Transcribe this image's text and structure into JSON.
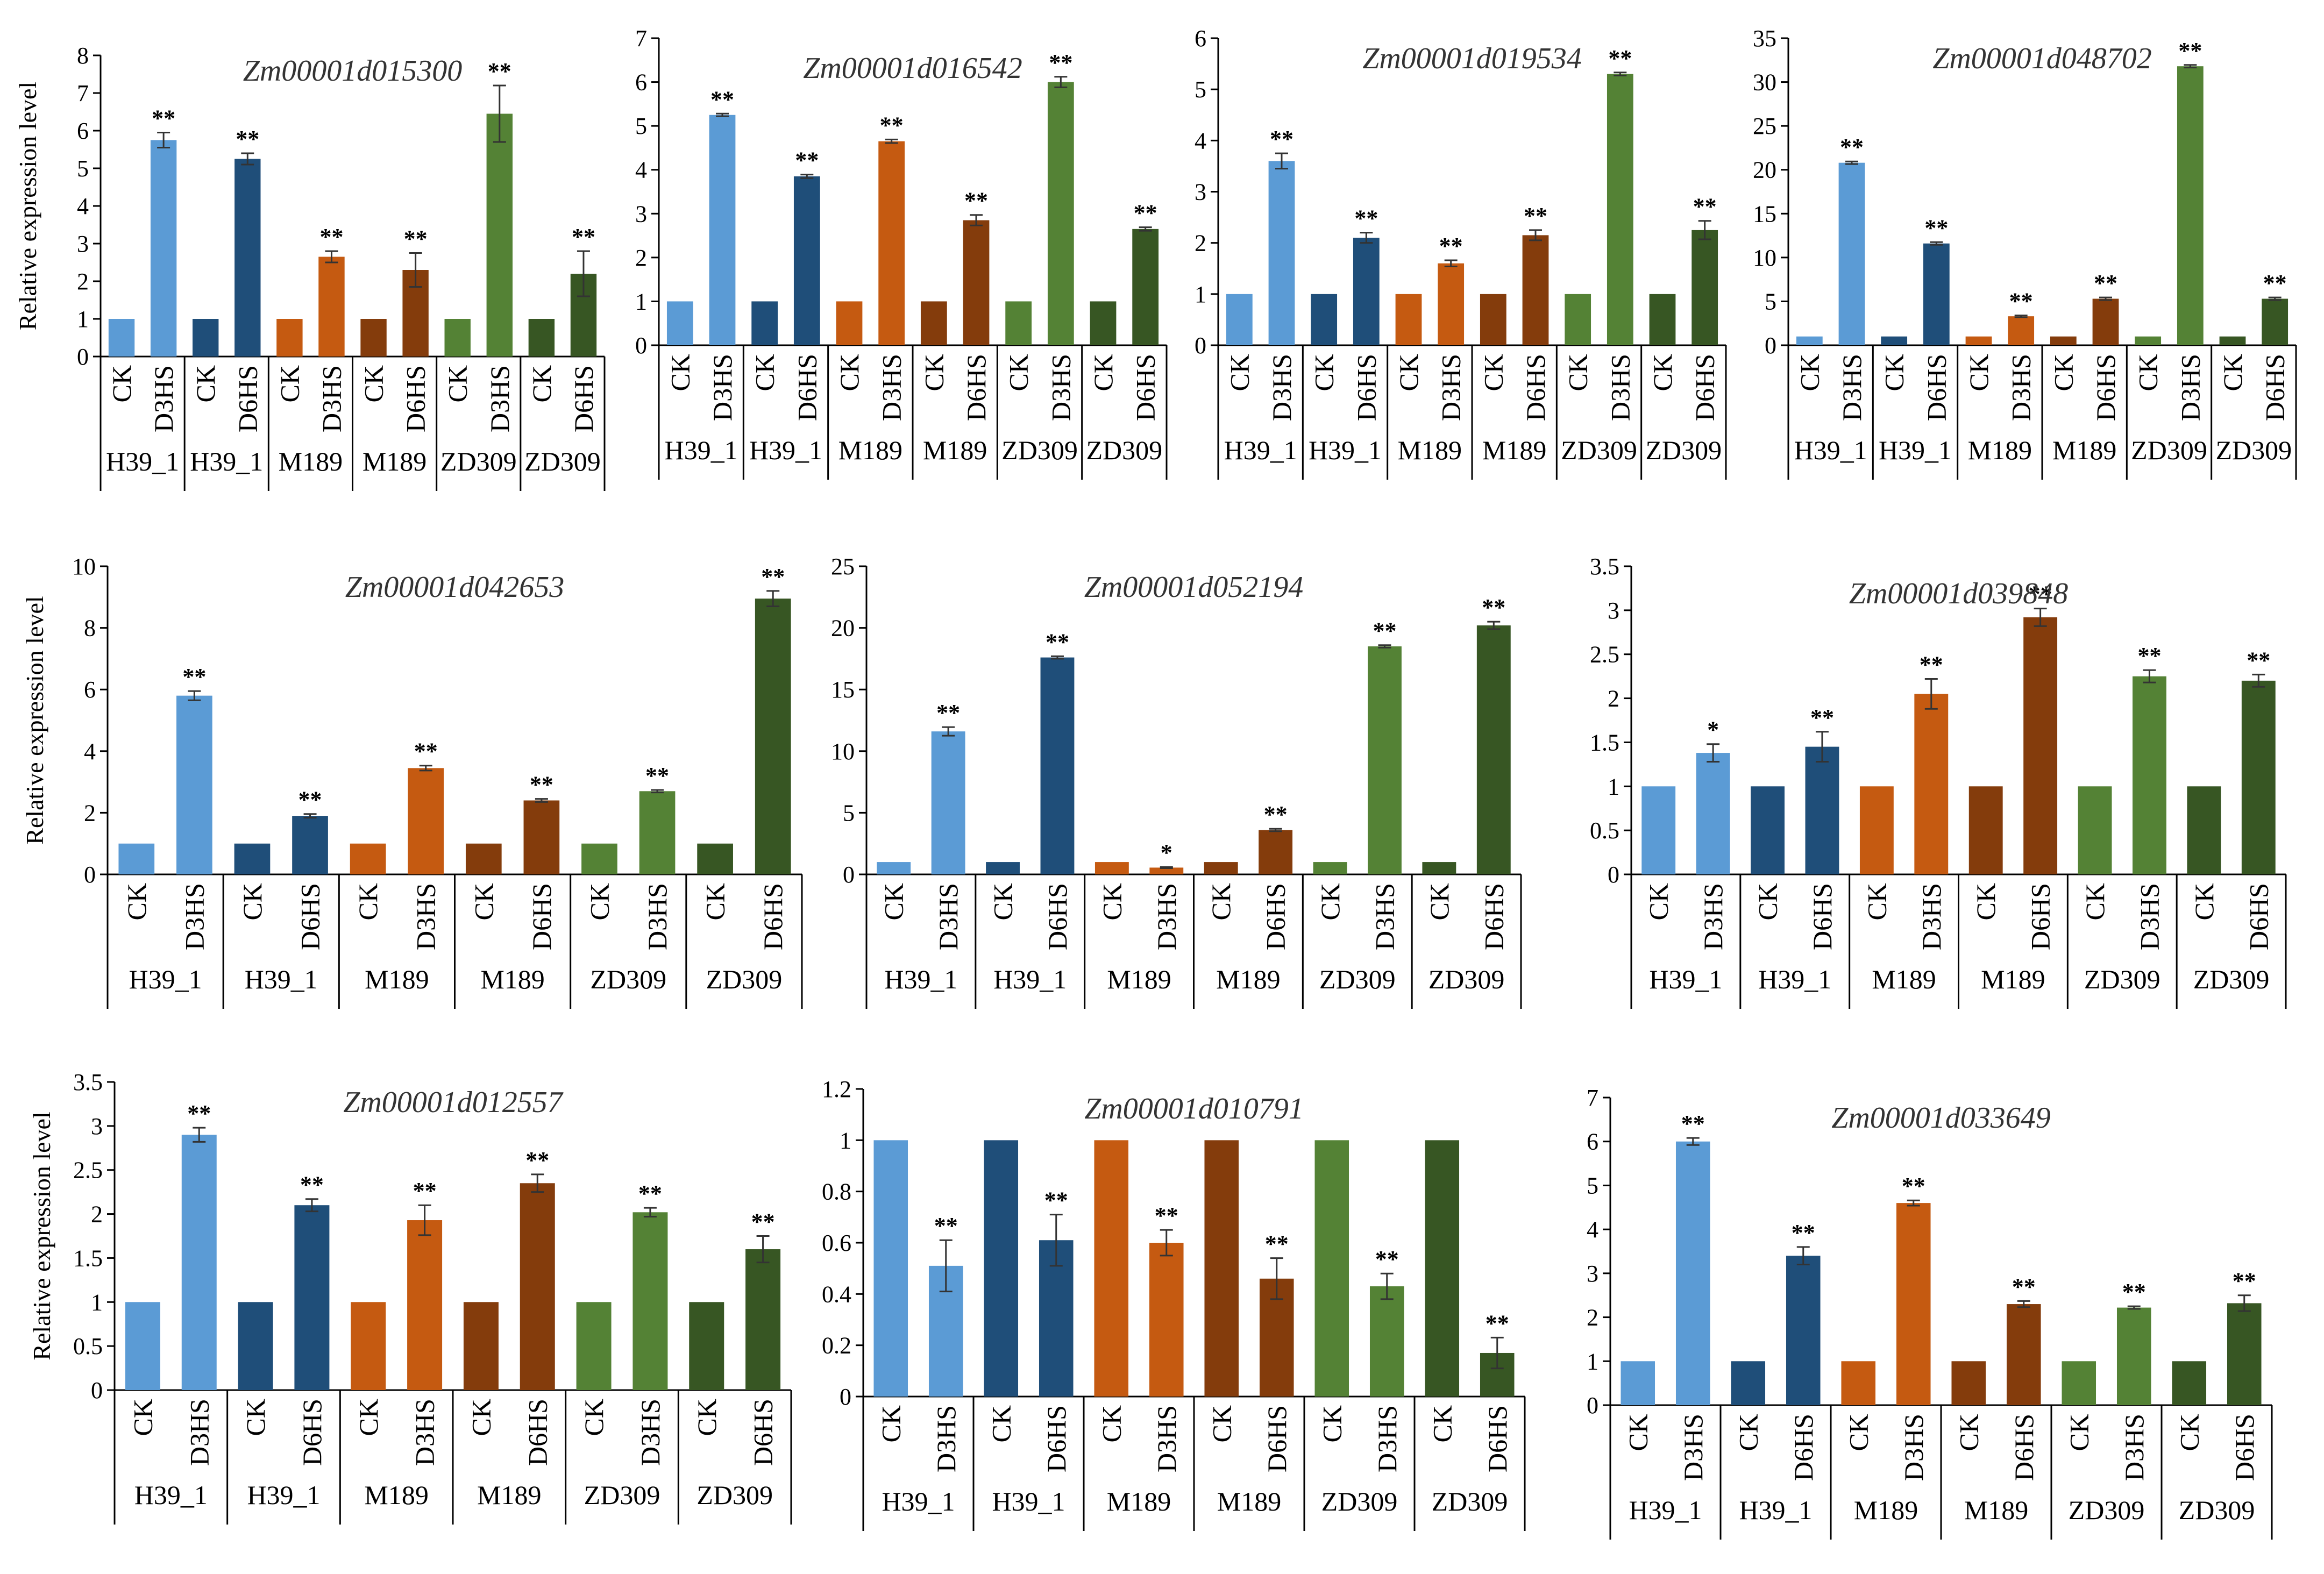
{
  "colors": {
    "H39_1_CK": "#5b9bd5",
    "H39_1_HS": "#1f4e79",
    "M189_CK": "#c55a11",
    "M189_HS": "#843c0c",
    "ZD309_CK": "#548235",
    "ZD309_HS": "#375623"
  },
  "ylabel_text": "Relative expression level",
  "chart_data": [
    {
      "type": "bar",
      "title": "Zm00001d015300",
      "ylabel": "Relative expression level",
      "ylim": [
        0,
        8
      ],
      "ystep": 1,
      "categories": [
        "CK",
        "D3HS",
        "CK",
        "D6HS",
        "CK",
        "D3HS",
        "CK",
        "D6HS",
        "CK",
        "D3HS",
        "CK",
        "D6HS"
      ],
      "groups": [
        "H39_1",
        "H39_1",
        "M189",
        "M189",
        "ZD309",
        "ZD309"
      ],
      "values": [
        1,
        5.75,
        1,
        5.25,
        1,
        2.65,
        1,
        2.3,
        1,
        6.45,
        1,
        2.2
      ],
      "errors": [
        0,
        0.2,
        0,
        0.15,
        0,
        0.15,
        0,
        0.45,
        0,
        0.75,
        0,
        0.6
      ],
      "significance": [
        "",
        "**",
        "",
        "**",
        "",
        "**",
        "",
        "**",
        "",
        "**",
        "",
        "**"
      ]
    },
    {
      "type": "bar",
      "title": "Zm00001d016542",
      "ylabel": "",
      "ylim": [
        0,
        7
      ],
      "ystep": 1,
      "categories": [
        "CK",
        "D3HS",
        "CK",
        "D6HS",
        "CK",
        "D3HS",
        "CK",
        "D6HS",
        "CK",
        "D3HS",
        "CK",
        "D6HS"
      ],
      "groups": [
        "H39_1",
        "H39_1",
        "M189",
        "M189",
        "ZD309",
        "ZD309"
      ],
      "values": [
        1,
        5.25,
        1,
        3.85,
        1,
        4.65,
        1,
        2.85,
        1,
        6.0,
        1,
        2.65
      ],
      "errors": [
        0,
        0.03,
        0,
        0.04,
        0,
        0.04,
        0,
        0.12,
        0,
        0.12,
        0,
        0.04
      ],
      "significance": [
        "",
        "**",
        "",
        "**",
        "",
        "**",
        "",
        "**",
        "",
        "**",
        "",
        "**"
      ]
    },
    {
      "type": "bar",
      "title": "Zm00001d019534",
      "ylabel": "",
      "ylim": [
        0,
        6
      ],
      "ystep": 1,
      "categories": [
        "CK",
        "D3HS",
        "CK",
        "D6HS",
        "CK",
        "D3HS",
        "CK",
        "D6HS",
        "CK",
        "D3HS",
        "CK",
        "D6HS"
      ],
      "groups": [
        "H39_1",
        "H39_1",
        "M189",
        "M189",
        "ZD309",
        "ZD309"
      ],
      "values": [
        1,
        3.6,
        1,
        2.1,
        1,
        1.6,
        1,
        2.15,
        1,
        5.3,
        1,
        2.25
      ],
      "errors": [
        0,
        0.15,
        0,
        0.1,
        0,
        0.06,
        0,
        0.1,
        0,
        0.03,
        0,
        0.18
      ],
      "significance": [
        "",
        "**",
        "",
        "**",
        "",
        "**",
        "",
        "**",
        "",
        "**",
        "",
        "**"
      ]
    },
    {
      "type": "bar",
      "title": "Zm00001d048702",
      "ylabel": "",
      "ylim": [
        0,
        35
      ],
      "ystep": 5,
      "categories": [
        "CK",
        "D3HS",
        "CK",
        "D6HS",
        "CK",
        "D3HS",
        "CK",
        "D6HS",
        "CK",
        "D3HS",
        "CK",
        "D6HS"
      ],
      "groups": [
        "H39_1",
        "H39_1",
        "M189",
        "M189",
        "ZD309",
        "ZD309"
      ],
      "values": [
        1,
        20.8,
        1,
        11.6,
        1,
        3.3,
        1,
        5.3,
        1,
        31.8,
        1,
        5.3
      ],
      "errors": [
        0,
        0.15,
        0,
        0.15,
        0,
        0.1,
        0,
        0.15,
        0,
        0.15,
        0,
        0.15
      ],
      "significance": [
        "",
        "**",
        "",
        "**",
        "",
        "**",
        "",
        "**",
        "",
        "**",
        "",
        "**"
      ]
    },
    {
      "type": "bar",
      "title": "Zm00001d042653",
      "ylabel": "Relative expression level",
      "ylim": [
        0,
        10
      ],
      "ystep": 2,
      "categories": [
        "CK",
        "D3HS",
        "CK",
        "D6HS",
        "CK",
        "D3HS",
        "CK",
        "D6HS",
        "CK",
        "D3HS",
        "CK",
        "D6HS"
      ],
      "groups": [
        "H39_1",
        "H39_1",
        "M189",
        "M189",
        "ZD309",
        "ZD309"
      ],
      "values": [
        1,
        5.8,
        1,
        1.9,
        1,
        3.45,
        1,
        2.4,
        1,
        2.7,
        1,
        8.95
      ],
      "errors": [
        0,
        0.15,
        0,
        0.06,
        0,
        0.08,
        0,
        0.05,
        0,
        0.04,
        0,
        0.25
      ],
      "significance": [
        "",
        "**",
        "",
        "**",
        "",
        "**",
        "",
        "**",
        "",
        "**",
        "",
        "**"
      ]
    },
    {
      "type": "bar",
      "title": "Zm00001d052194",
      "ylabel": "",
      "ylim": [
        0,
        25
      ],
      "ystep": 5,
      "categories": [
        "CK",
        "D3HS",
        "CK",
        "D6HS",
        "CK",
        "D3HS",
        "CK",
        "D6HS",
        "CK",
        "D3HS",
        "CK",
        "D6HS"
      ],
      "groups": [
        "H39_1",
        "H39_1",
        "M189",
        "M189",
        "ZD309",
        "ZD309"
      ],
      "values": [
        1,
        11.6,
        1,
        17.6,
        1,
        0.55,
        1,
        3.6,
        1,
        18.5,
        1,
        20.2
      ],
      "errors": [
        0,
        0.35,
        0,
        0.1,
        0,
        0.05,
        0,
        0.1,
        0,
        0.1,
        0,
        0.3
      ],
      "significance": [
        "",
        "**",
        "",
        "**",
        "",
        "*",
        "",
        "**",
        "",
        "**",
        "",
        "**"
      ]
    },
    {
      "type": "bar",
      "title": "Zm00001d039848",
      "ylabel": "",
      "ylim": [
        0,
        3.5
      ],
      "ystep": 0.5,
      "categories": [
        "CK",
        "D3HS",
        "CK",
        "D6HS",
        "CK",
        "D3HS",
        "CK",
        "D6HS",
        "CK",
        "D3HS",
        "CK",
        "D6HS"
      ],
      "groups": [
        "H39_1",
        "H39_1",
        "M189",
        "M189",
        "ZD309",
        "ZD309"
      ],
      "values": [
        1,
        1.38,
        1,
        1.45,
        1,
        2.05,
        1,
        2.92,
        1,
        2.25,
        1,
        2.2
      ],
      "errors": [
        0,
        0.1,
        0,
        0.17,
        0,
        0.17,
        0,
        0.1,
        0,
        0.07,
        0,
        0.07
      ],
      "significance": [
        "",
        "*",
        "",
        "**",
        "",
        "**",
        "",
        "**",
        "",
        "**",
        "",
        "**"
      ]
    },
    {
      "type": "bar",
      "title": "Zm00001d012557",
      "ylabel": "Relative expression level",
      "ylim": [
        0,
        3.5
      ],
      "ystep": 0.5,
      "categories": [
        "CK",
        "D3HS",
        "CK",
        "D6HS",
        "CK",
        "D3HS",
        "CK",
        "D6HS",
        "CK",
        "D3HS",
        "CK",
        "D6HS"
      ],
      "groups": [
        "H39_1",
        "H39_1",
        "M189",
        "M189",
        "ZD309",
        "ZD309"
      ],
      "values": [
        1,
        2.9,
        1,
        2.1,
        1,
        1.93,
        1,
        2.35,
        1,
        2.02,
        1,
        1.6
      ],
      "errors": [
        0,
        0.08,
        0,
        0.07,
        0,
        0.17,
        0,
        0.1,
        0,
        0.05,
        0,
        0.15
      ],
      "significance": [
        "",
        "**",
        "",
        "**",
        "",
        "**",
        "",
        "**",
        "",
        "**",
        "",
        "**"
      ]
    },
    {
      "type": "bar",
      "title": "Zm00001d010791",
      "ylabel": "",
      "ylim": [
        0,
        1.2
      ],
      "ystep": 0.2,
      "categories": [
        "CK",
        "D3HS",
        "CK",
        "D6HS",
        "CK",
        "D3HS",
        "CK",
        "D6HS",
        "CK",
        "D3HS",
        "CK",
        "D6HS"
      ],
      "groups": [
        "H39_1",
        "H39_1",
        "M189",
        "M189",
        "ZD309",
        "ZD309"
      ],
      "values": [
        1,
        0.51,
        1,
        0.61,
        1,
        0.6,
        1,
        0.46,
        1,
        0.43,
        1,
        0.17
      ],
      "errors": [
        0,
        0.1,
        0,
        0.1,
        0,
        0.05,
        0,
        0.08,
        0,
        0.05,
        0,
        0.06
      ],
      "significance": [
        "",
        "**",
        "",
        "**",
        "",
        "**",
        "",
        "**",
        "",
        "**",
        "",
        "**"
      ]
    },
    {
      "type": "bar",
      "title": "Zm00001d033649",
      "ylabel": "",
      "ylim": [
        0,
        7
      ],
      "ystep": 1,
      "categories": [
        "CK",
        "D3HS",
        "CK",
        "D6HS",
        "CK",
        "D3HS",
        "CK",
        "D6HS",
        "CK",
        "D3HS",
        "CK",
        "D6HS"
      ],
      "groups": [
        "H39_1",
        "H39_1",
        "M189",
        "M189",
        "ZD309",
        "ZD309"
      ],
      "values": [
        1,
        6.0,
        1,
        3.4,
        1,
        4.6,
        1,
        2.3,
        1,
        2.22,
        1,
        2.32
      ],
      "errors": [
        0,
        0.08,
        0,
        0.2,
        0,
        0.06,
        0,
        0.07,
        0,
        0.03,
        0,
        0.18
      ],
      "significance": [
        "",
        "**",
        "",
        "**",
        "",
        "**",
        "",
        "**",
        "",
        "**",
        "",
        "**"
      ]
    }
  ]
}
